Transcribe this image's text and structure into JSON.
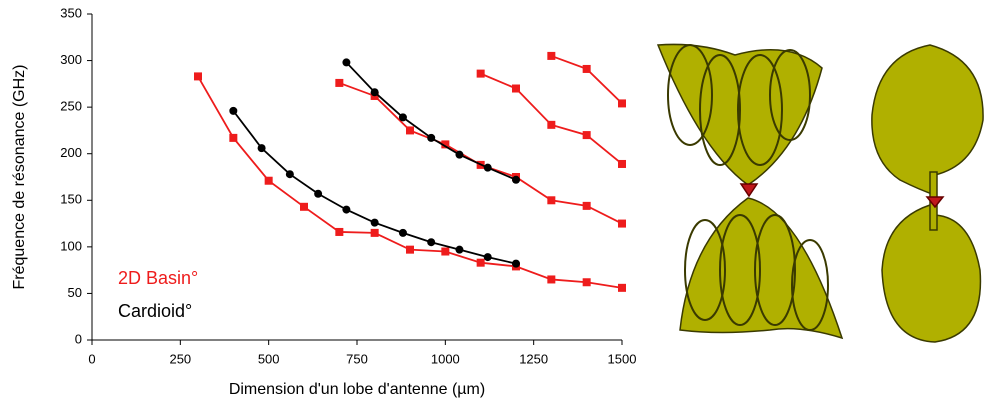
{
  "chart_data": {
    "type": "line",
    "x_label": "Dimension d'un lobe d'antenne (µm)",
    "y_label": "Fréquence de résonance (GHz)",
    "xlim": [
      0,
      1500
    ],
    "xticks": [
      0,
      250,
      500,
      750,
      1000,
      1250,
      1500
    ],
    "ylim": [
      0,
      350
    ],
    "yticks": [
      0,
      50,
      100,
      150,
      200,
      250,
      300,
      350
    ],
    "series": [
      {
        "name": "2D Basin°",
        "color": "#ee1c1c",
        "marker": "square",
        "curves": [
          {
            "x": [
              300,
              400,
              500,
              600,
              700,
              800,
              900,
              1000,
              1100,
              1200,
              1300,
              1400,
              1500
            ],
            "values": [
              283,
              217,
              171,
              143,
              116,
              115,
              97,
              95,
              83,
              79,
              65,
              62,
              56
            ]
          },
          {
            "x": [
              700,
              800,
              900,
              1000,
              1100,
              1200,
              1300,
              1400,
              1500
            ],
            "values": [
              276,
              262,
              225,
              210,
              188,
              175,
              150,
              144,
              125
            ]
          },
          {
            "x": [
              1100,
              1200,
              1300,
              1400,
              1500
            ],
            "values": [
              286,
              270,
              231,
              220,
              189
            ]
          },
          {
            "x": [
              1300,
              1400,
              1500
            ],
            "values": [
              305,
              291,
              254
            ]
          }
        ]
      },
      {
        "name": "Cardioid°",
        "color": "#000000",
        "marker": "circle",
        "curves": [
          {
            "x": [
              400,
              480,
              560,
              640,
              720,
              800,
              880,
              960,
              1040,
              1120,
              1200
            ],
            "values": [
              246,
              206,
              178,
              157,
              140,
              126,
              115,
              105,
              97,
              89,
              82
            ]
          },
          {
            "x": [
              720,
              800,
              880,
              960,
              1040,
              1120,
              1200
            ],
            "values": [
              298,
              266,
              239,
              217,
              199,
              185,
              172
            ]
          }
        ]
      }
    ]
  }
}
